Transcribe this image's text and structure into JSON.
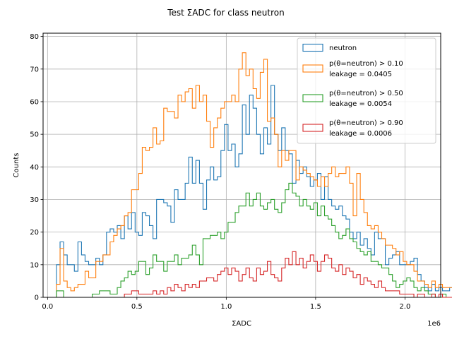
{
  "chart_data": {
    "type": "histogram",
    "title": "Test ΣADC for class neutron",
    "xlabel": "ΣADC",
    "ylabel": "Counts",
    "x_offset_text": "1e6",
    "xlim": [
      -25000,
      2200000
    ],
    "ylim": [
      0,
      81
    ],
    "x_ticks": [
      0,
      500000,
      1000000,
      1500000,
      2000000
    ],
    "x_tick_labels": [
      "0.0",
      "0.5",
      "1.0",
      "1.5",
      "2.0"
    ],
    "y_ticks": [
      0,
      10,
      20,
      30,
      40,
      50,
      60,
      70,
      80
    ],
    "y_tick_labels": [
      "0",
      "10",
      "20",
      "30",
      "40",
      "50",
      "60",
      "70",
      "80"
    ],
    "grid": true,
    "legend_position": "upper right",
    "bin_start": 50000,
    "bin_width": 20000,
    "series": [
      {
        "label_lines": [
          "neutron"
        ],
        "color": "#1f77b4",
        "values": [
          10,
          17,
          13,
          10,
          10,
          8,
          17,
          13,
          11,
          10,
          10,
          12,
          10,
          13,
          20,
          21,
          20,
          22,
          18,
          25,
          21,
          26,
          20,
          19,
          26,
          25,
          22,
          18,
          30,
          30,
          29,
          28,
          23,
          33,
          30,
          30,
          35,
          43,
          35,
          42,
          35,
          27,
          36,
          40,
          36,
          37,
          45,
          53,
          45,
          47,
          40,
          44,
          59,
          50,
          62,
          58,
          50,
          44,
          52,
          47,
          65,
          50,
          45,
          52,
          45,
          44,
          35,
          42,
          38,
          40,
          37,
          34,
          36,
          38,
          30,
          37,
          30,
          28,
          27,
          28,
          25,
          24,
          20,
          18,
          20,
          16,
          18,
          15,
          13,
          20,
          18,
          18,
          10,
          12,
          13,
          14,
          10,
          10,
          10,
          11,
          12,
          7,
          5,
          3,
          2,
          4,
          2,
          3,
          2,
          2,
          3,
          2,
          3,
          3,
          2,
          2,
          2,
          1,
          2,
          2,
          1,
          1,
          2,
          1,
          1,
          1,
          0,
          1,
          0,
          1
        ]
      },
      {
        "label_lines": [
          "p(θ=neutron) > 0.10",
          "leakage = 0.0405"
        ],
        "color": "#ff7f0e",
        "values": [
          4,
          15,
          5,
          3,
          2,
          3,
          4,
          4,
          8,
          6,
          6,
          11,
          11,
          13,
          13,
          17,
          19,
          21,
          22,
          25,
          26,
          33,
          33,
          38,
          46,
          45,
          46,
          52,
          47,
          48,
          58,
          57,
          57,
          55,
          62,
          60,
          63,
          64,
          58,
          65,
          60,
          62,
          54,
          46,
          52,
          55,
          58,
          60,
          60,
          62,
          60,
          70,
          75,
          68,
          70,
          64,
          61,
          69,
          73,
          54,
          55,
          50,
          40,
          45,
          42,
          45,
          45,
          36,
          40,
          39,
          38,
          37,
          36,
          34,
          37,
          34,
          38,
          40,
          37,
          38,
          38,
          40,
          35,
          25,
          38,
          30,
          26,
          22,
          21,
          22,
          20,
          18,
          16,
          16,
          15,
          13,
          14,
          11,
          10,
          10,
          8,
          5,
          5,
          4,
          3,
          5,
          3,
          4,
          3,
          3,
          3,
          2,
          3,
          2,
          2,
          2,
          3,
          2,
          2,
          2,
          1,
          1,
          1,
          2,
          1,
          1,
          1,
          0,
          1,
          0,
          0,
          1,
          1,
          0
        ]
      },
      {
        "label_lines": [
          "p(θ=neutron) > 0.50",
          "leakage = 0.0054"
        ],
        "color": "#2ca02c",
        "values": [
          2,
          2,
          0,
          0,
          0,
          0,
          0,
          0,
          0,
          0,
          1,
          1,
          2,
          2,
          2,
          1,
          1,
          3,
          5,
          6,
          8,
          7,
          8,
          11,
          11,
          7,
          9,
          13,
          11,
          11,
          8,
          11,
          11,
          13,
          10,
          12,
          12,
          13,
          16,
          13,
          10,
          18,
          18,
          19,
          19,
          20,
          18,
          20,
          23,
          23,
          26,
          28,
          28,
          32,
          28,
          30,
          32,
          28,
          27,
          29,
          30,
          27,
          26,
          29,
          33,
          35,
          32,
          31,
          28,
          30,
          28,
          27,
          29,
          25,
          28,
          25,
          24,
          22,
          20,
          18,
          19,
          21,
          18,
          17,
          15,
          14,
          13,
          14,
          11,
          11,
          10,
          9,
          9,
          7,
          5,
          3,
          4,
          5,
          6,
          5,
          3,
          2,
          3,
          2,
          1,
          1,
          0,
          0,
          1,
          0,
          0,
          2,
          1,
          0,
          2,
          1,
          1,
          0,
          0,
          0,
          1,
          0,
          1,
          0,
          0,
          0,
          1
        ]
      },
      {
        "label_lines": [
          "p(θ=neutron) > 0.90",
          "leakage = 0.0006"
        ],
        "color": "#d62728",
        "values": [
          0,
          0,
          0,
          0,
          0,
          0,
          0,
          0,
          0,
          0,
          0,
          0,
          0,
          0,
          0,
          0,
          0,
          0,
          0,
          1,
          1,
          2,
          2,
          1,
          1,
          1,
          1,
          2,
          1,
          2,
          1,
          3,
          2,
          4,
          3,
          2,
          4,
          3,
          4,
          3,
          5,
          5,
          6,
          6,
          5,
          7,
          8,
          9,
          7,
          9,
          8,
          5,
          7,
          9,
          6,
          5,
          9,
          7,
          8,
          11,
          7,
          6,
          5,
          9,
          12,
          10,
          14,
          10,
          12,
          9,
          11,
          13,
          11,
          8,
          11,
          13,
          12,
          9,
          8,
          10,
          7,
          9,
          8,
          6,
          7,
          4,
          6,
          5,
          4,
          3,
          5,
          3,
          2,
          2,
          2,
          2,
          1,
          1,
          1,
          1,
          0,
          1,
          1,
          0,
          0,
          1,
          0,
          1,
          0,
          0,
          0,
          1,
          0,
          0,
          0,
          0,
          1,
          0,
          0,
          1
        ]
      }
    ]
  }
}
